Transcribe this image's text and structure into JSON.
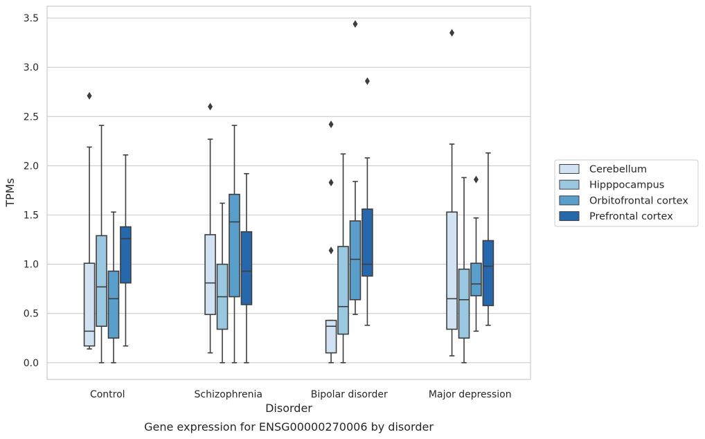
{
  "chart_data": {
    "type": "box",
    "title": "",
    "caption": "Gene expression for ENSG00000270006 by disorder",
    "xlabel": "Disorder",
    "ylabel": "TPMs",
    "ylim": [
      -0.17,
      3.62
    ],
    "yticks": [
      "0.0",
      "0.5",
      "1.0",
      "1.5",
      "2.0",
      "2.5",
      "3.0",
      "3.5"
    ],
    "grid": true,
    "legend_position": "right",
    "categories": [
      "Control",
      "Schizophrenia",
      "Bipolar disorder",
      "Major depression"
    ],
    "series": [
      {
        "name": "Cerebellum",
        "color": "#d1e2f2",
        "boxes": [
          {
            "whislo": 0.14,
            "q1": 0.17,
            "med": 0.32,
            "q3": 1.01,
            "whishi": 2.19,
            "fliers": [
              2.71
            ]
          },
          {
            "whislo": 0.1,
            "q1": 0.49,
            "med": 0.81,
            "q3": 1.3,
            "whishi": 2.27,
            "fliers": [
              2.6
            ]
          },
          {
            "whislo": 0.0,
            "q1": 0.1,
            "med": 0.37,
            "q3": 0.43,
            "whishi": 0.43,
            "fliers": [
              1.14,
              1.83,
              2.42
            ]
          },
          {
            "whislo": 0.07,
            "q1": 0.34,
            "med": 0.65,
            "q3": 1.53,
            "whishi": 2.22,
            "fliers": [
              3.35
            ]
          }
        ]
      },
      {
        "name": "Hipppocampus",
        "color": "#9ac8e0",
        "boxes": [
          {
            "whislo": 0.0,
            "q1": 0.37,
            "med": 0.77,
            "q3": 1.29,
            "whishi": 2.41,
            "fliers": []
          },
          {
            "whislo": 0.0,
            "q1": 0.34,
            "med": 0.67,
            "q3": 1.0,
            "whishi": 1.62,
            "fliers": []
          },
          {
            "whislo": 0.0,
            "q1": 0.29,
            "med": 0.57,
            "q3": 1.18,
            "whishi": 2.12,
            "fliers": []
          },
          {
            "whislo": 0.0,
            "q1": 0.25,
            "med": 0.64,
            "q3": 0.95,
            "whishi": 1.88,
            "fliers": []
          }
        ]
      },
      {
        "name": "Orbitofrontal cortex",
        "color": "#5a9fcc",
        "boxes": [
          {
            "whislo": 0.0,
            "q1": 0.25,
            "med": 0.65,
            "q3": 0.93,
            "whishi": 1.53,
            "fliers": []
          },
          {
            "whislo": 0.0,
            "q1": 0.67,
            "med": 1.43,
            "q3": 1.71,
            "whishi": 2.41,
            "fliers": []
          },
          {
            "whislo": 0.49,
            "q1": 0.64,
            "med": 1.05,
            "q3": 1.44,
            "whishi": 1.84,
            "fliers": [
              3.44
            ]
          },
          {
            "whislo": 0.32,
            "q1": 0.68,
            "med": 0.8,
            "q3": 1.01,
            "whishi": 1.47,
            "fliers": [
              1.86
            ]
          }
        ]
      },
      {
        "name": "Prefrontal cortex",
        "color": "#2767ab",
        "boxes": [
          {
            "whislo": 0.17,
            "q1": 0.81,
            "med": 1.26,
            "q3": 1.38,
            "whishi": 2.11,
            "fliers": []
          },
          {
            "whislo": 0.0,
            "q1": 0.59,
            "med": 0.93,
            "q3": 1.33,
            "whishi": 1.92,
            "fliers": []
          },
          {
            "whislo": 0.38,
            "q1": 0.88,
            "med": 1.0,
            "q3": 1.56,
            "whishi": 2.08,
            "fliers": [
              2.86
            ]
          },
          {
            "whislo": 0.38,
            "q1": 0.58,
            "med": 0.98,
            "q3": 1.24,
            "whishi": 2.13,
            "fliers": []
          }
        ]
      }
    ]
  }
}
